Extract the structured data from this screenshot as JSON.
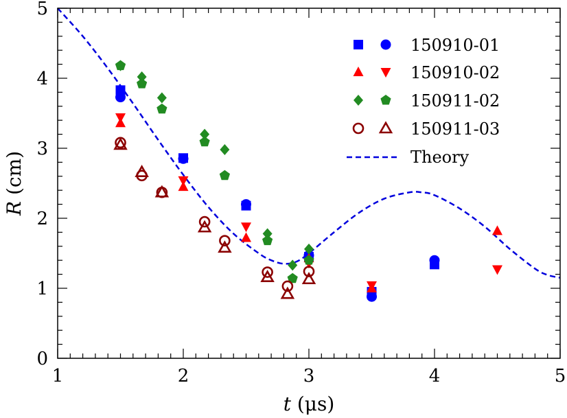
{
  "chart_data": {
    "type": "scatter",
    "title": "",
    "xlabel": {
      "var": "t",
      "unit": " (μs)"
    },
    "ylabel": {
      "var": "R",
      "unit": " (cm)"
    },
    "xlim": [
      1,
      5
    ],
    "ylim": [
      0,
      5
    ],
    "xticks": [
      1,
      2,
      3,
      4,
      5
    ],
    "yticks": [
      0,
      1,
      2,
      3,
      4,
      5
    ],
    "x_minor_step": 0.1,
    "y_minor_step": 0.2,
    "grid": false,
    "legend_position": "top-right",
    "series": [
      {
        "name": "150910-01",
        "color": "#0000ff",
        "markers": [
          "square",
          "circle"
        ],
        "points": [
          {
            "x": 1.5,
            "y": 3.83,
            "m": 0
          },
          {
            "x": 1.5,
            "y": 3.73,
            "m": 1
          },
          {
            "x": 2.0,
            "y": 2.86,
            "m": 0
          },
          {
            "x": 2.0,
            "y": 2.85,
            "m": 1
          },
          {
            "x": 2.5,
            "y": 2.18,
            "m": 0
          },
          {
            "x": 2.5,
            "y": 2.2,
            "m": 1
          },
          {
            "x": 3.0,
            "y": 1.45,
            "m": 0
          },
          {
            "x": 3.0,
            "y": 1.47,
            "m": 1
          },
          {
            "x": 3.5,
            "y": 0.95,
            "m": 0
          },
          {
            "x": 3.5,
            "y": 0.88,
            "m": 1
          },
          {
            "x": 4.0,
            "y": 1.34,
            "m": 0
          },
          {
            "x": 4.0,
            "y": 1.4,
            "m": 1
          }
        ]
      },
      {
        "name": "150910-02",
        "color": "#ff0000",
        "markers": [
          "triangle-up",
          "triangle-down"
        ],
        "points": [
          {
            "x": 1.5,
            "y": 3.36,
            "m": 0
          },
          {
            "x": 1.5,
            "y": 3.44,
            "m": 1
          },
          {
            "x": 2.0,
            "y": 2.45,
            "m": 0
          },
          {
            "x": 2.0,
            "y": 2.54,
            "m": 1
          },
          {
            "x": 2.5,
            "y": 1.72,
            "m": 0
          },
          {
            "x": 2.5,
            "y": 1.88,
            "m": 1
          },
          {
            "x": 3.0,
            "y": 1.43,
            "m": 0
          },
          {
            "x": 3.0,
            "y": 1.36,
            "m": 1
          },
          {
            "x": 3.5,
            "y": 1.0,
            "m": 0
          },
          {
            "x": 3.5,
            "y": 1.04,
            "m": 1
          },
          {
            "x": 4.5,
            "y": 1.82,
            "m": 0
          },
          {
            "x": 4.5,
            "y": 1.27,
            "m": 1
          }
        ]
      },
      {
        "name": "150911-02",
        "color": "#228b22",
        "markers": [
          "diamond",
          "pentagon"
        ],
        "points": [
          {
            "x": 1.5,
            "y": 4.18,
            "m": 0
          },
          {
            "x": 1.5,
            "y": 4.18,
            "m": 1
          },
          {
            "x": 1.67,
            "y": 4.02,
            "m": 0
          },
          {
            "x": 1.67,
            "y": 3.92,
            "m": 1
          },
          {
            "x": 1.83,
            "y": 3.72,
            "m": 0
          },
          {
            "x": 1.83,
            "y": 3.56,
            "m": 1
          },
          {
            "x": 2.17,
            "y": 3.2,
            "m": 0
          },
          {
            "x": 2.17,
            "y": 3.09,
            "m": 1
          },
          {
            "x": 2.33,
            "y": 2.98,
            "m": 0
          },
          {
            "x": 2.33,
            "y": 2.61,
            "m": 1
          },
          {
            "x": 2.67,
            "y": 1.78,
            "m": 0
          },
          {
            "x": 2.67,
            "y": 1.68,
            "m": 1
          },
          {
            "x": 2.87,
            "y": 1.33,
            "m": 0
          },
          {
            "x": 2.87,
            "y": 1.14,
            "m": 1
          },
          {
            "x": 3.0,
            "y": 1.56,
            "m": 0
          },
          {
            "x": 3.0,
            "y": 1.4,
            "m": 1
          }
        ]
      },
      {
        "name": "150911-03",
        "color": "#8b0000",
        "markers": [
          "circle-open",
          "triangle-open"
        ],
        "points": [
          {
            "x": 1.5,
            "y": 3.08,
            "m": 0
          },
          {
            "x": 1.5,
            "y": 3.05,
            "m": 1
          },
          {
            "x": 1.67,
            "y": 2.61,
            "m": 0
          },
          {
            "x": 1.67,
            "y": 2.66,
            "m": 1
          },
          {
            "x": 1.83,
            "y": 2.37,
            "m": 0
          },
          {
            "x": 1.83,
            "y": 2.37,
            "m": 1
          },
          {
            "x": 2.17,
            "y": 1.95,
            "m": 0
          },
          {
            "x": 2.17,
            "y": 1.87,
            "m": 1
          },
          {
            "x": 2.33,
            "y": 1.68,
            "m": 0
          },
          {
            "x": 2.33,
            "y": 1.58,
            "m": 1
          },
          {
            "x": 2.67,
            "y": 1.23,
            "m": 0
          },
          {
            "x": 2.67,
            "y": 1.16,
            "m": 1
          },
          {
            "x": 2.83,
            "y": 1.03,
            "m": 0
          },
          {
            "x": 2.83,
            "y": 0.92,
            "m": 1
          },
          {
            "x": 3.0,
            "y": 1.24,
            "m": 0
          },
          {
            "x": 3.0,
            "y": 1.13,
            "m": 1
          }
        ]
      }
    ],
    "theory": {
      "name": "Theory",
      "color": "#0000dd",
      "style": "dashed",
      "x": [
        1.0,
        1.2,
        1.4,
        1.6,
        1.8,
        2.0,
        2.2,
        2.4,
        2.6,
        2.7,
        2.8,
        2.9,
        3.0,
        3.2,
        3.4,
        3.6,
        3.8,
        3.9,
        4.0,
        4.2,
        4.4,
        4.6,
        4.8,
        4.9,
        5.0
      ],
      "y": [
        5.0,
        4.6,
        4.14,
        3.64,
        3.12,
        2.62,
        2.16,
        1.78,
        1.5,
        1.4,
        1.35,
        1.38,
        1.5,
        1.8,
        2.08,
        2.28,
        2.37,
        2.37,
        2.33,
        2.14,
        1.88,
        1.56,
        1.28,
        1.19,
        1.15
      ]
    }
  }
}
